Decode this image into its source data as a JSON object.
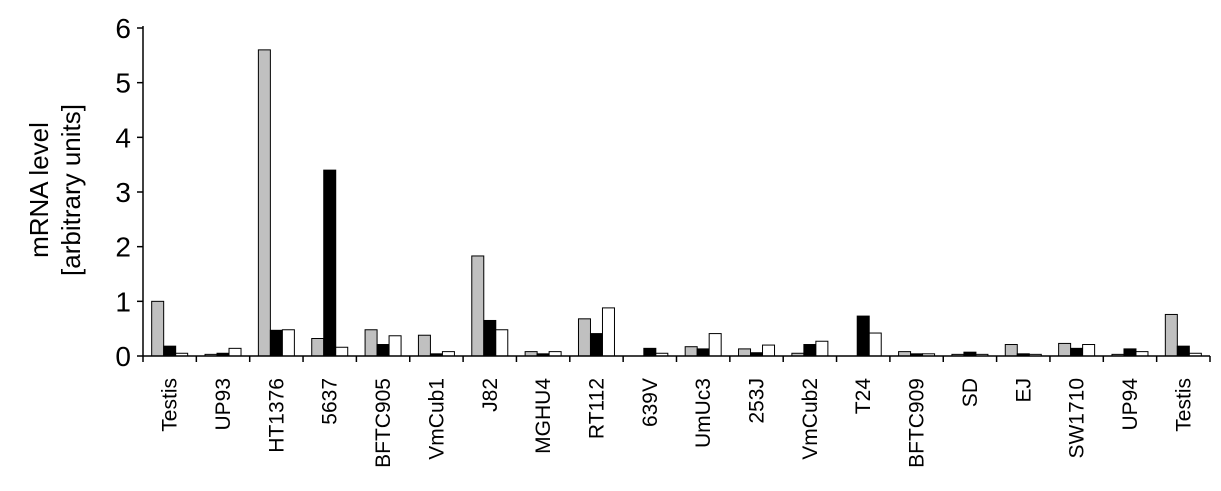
{
  "chart_data": {
    "type": "bar",
    "title": "",
    "xlabel": "",
    "ylabel_lines": [
      "mRNA level",
      "[arbitrary units]"
    ],
    "ylim": [
      0,
      6
    ],
    "yticks": [
      0,
      1,
      2,
      3,
      4,
      5,
      6
    ],
    "ytick_labels": [
      "0",
      "1",
      "2",
      "3",
      "4",
      "5",
      "6"
    ],
    "grid": false,
    "legend": "none",
    "categories": [
      "Testis",
      "UP93",
      "HT1376",
      "5637",
      "BFTC905",
      "VmCub1",
      "J82",
      "MGHU4",
      "RT112",
      "639V",
      "UmUc3",
      "253J",
      "VmCub2",
      "T24",
      "BFTC909",
      "SD",
      "EJ",
      "SW1710",
      "UP94",
      "Testis"
    ],
    "series": [
      {
        "color": "#c0c0c0",
        "values": [
          1.0,
          0.03,
          5.6,
          0.32,
          0.48,
          0.38,
          1.83,
          0.08,
          0.68,
          0.0,
          0.17,
          0.13,
          0.05,
          0.0,
          0.08,
          0.03,
          0.21,
          0.23,
          0.03,
          0.76
        ]
      },
      {
        "color": "#000000",
        "values": [
          0.18,
          0.05,
          0.47,
          3.4,
          0.21,
          0.04,
          0.65,
          0.04,
          0.41,
          0.14,
          0.13,
          0.06,
          0.21,
          0.73,
          0.04,
          0.07,
          0.04,
          0.14,
          0.13,
          0.18
        ]
      },
      {
        "color": "#ffffff",
        "values": [
          0.05,
          0.14,
          0.48,
          0.16,
          0.37,
          0.08,
          0.48,
          0.08,
          0.88,
          0.05,
          0.41,
          0.2,
          0.27,
          0.42,
          0.04,
          0.03,
          0.03,
          0.21,
          0.08,
          0.05
        ]
      }
    ]
  }
}
